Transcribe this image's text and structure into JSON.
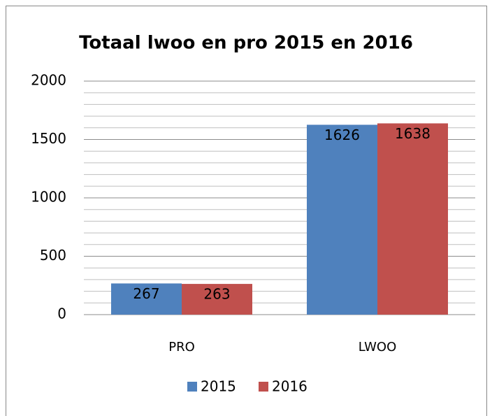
{
  "chart_data": {
    "type": "bar",
    "title": "Totaal lwoo en pro 2015 en 2016",
    "categories": [
      "PRO",
      "LWOO"
    ],
    "series": [
      {
        "name": "2015",
        "color": "#4f81bd",
        "values": [
          267,
          1626
        ]
      },
      {
        "name": "2016",
        "color": "#c0504d",
        "values": [
          263,
          1638
        ]
      }
    ],
    "ylim": [
      0,
      2000
    ],
    "yticks": [
      0,
      500,
      1000,
      1500,
      2000
    ],
    "minor_yticks": [
      100,
      200,
      300,
      400,
      600,
      700,
      800,
      900,
      1100,
      1200,
      1300,
      1400,
      1600,
      1700,
      1800,
      1900
    ],
    "grid": true,
    "legend": "bottom"
  }
}
